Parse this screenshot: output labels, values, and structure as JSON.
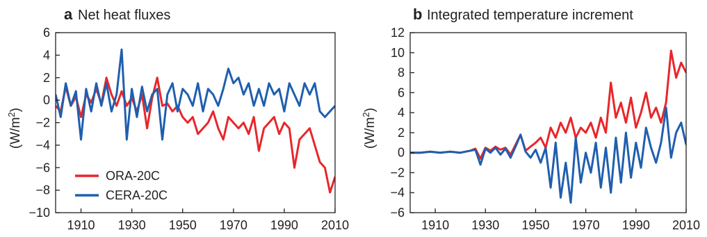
{
  "colors": {
    "ora": "#e8262a",
    "cera": "#1f5fae",
    "axis": "#231f20"
  },
  "chart_data": [
    {
      "type": "line",
      "panel": "a",
      "title": "Net heat fluxes",
      "xlabel": "",
      "ylabel": "(W/m",
      "ylabel_sup": "2",
      "ylabel_tail": ")",
      "xlim": [
        1900,
        2010
      ],
      "ylim": [
        -10,
        6
      ],
      "xticks": [
        1910,
        1930,
        1950,
        1970,
        1990,
        2010
      ],
      "yticks": [
        6,
        4,
        2,
        0,
        -2,
        -4,
        -6,
        -8,
        -10
      ],
      "legend": "lower-left",
      "grid": false,
      "series": [
        {
          "name": "ORA-20C",
          "color": "#e8262a",
          "x": [
            1900,
            1902,
            1904,
            1906,
            1908,
            1910,
            1912,
            1914,
            1916,
            1918,
            1920,
            1922,
            1924,
            1926,
            1928,
            1930,
            1932,
            1934,
            1936,
            1938,
            1940,
            1942,
            1944,
            1946,
            1948,
            1950,
            1952,
            1954,
            1956,
            1958,
            1960,
            1962,
            1964,
            1966,
            1968,
            1970,
            1972,
            1974,
            1976,
            1978,
            1980,
            1982,
            1984,
            1986,
            1988,
            1990,
            1992,
            1994,
            1996,
            1998,
            2000,
            2002,
            2004,
            2006,
            2008,
            2010
          ],
          "y": [
            -0.5,
            -1.0,
            1.2,
            -0.5,
            0.3,
            -1.5,
            0.5,
            -0.2,
            1.0,
            -0.3,
            2.0,
            0.5,
            -0.5,
            0.8,
            -0.5,
            0.2,
            -1.0,
            0.5,
            -2.5,
            0.2,
            2.0,
            -0.5,
            -0.3,
            -1.0,
            -0.5,
            -1.5,
            -2.0,
            -1.5,
            -3.0,
            -2.5,
            -2.0,
            -1.0,
            -2.5,
            -3.5,
            -1.5,
            -2.0,
            -2.5,
            -2.0,
            -3.0,
            -1.5,
            -4.5,
            -2.5,
            -2.0,
            -1.5,
            -3.0,
            -2.0,
            -2.5,
            -6.0,
            -3.5,
            -3.0,
            -2.5,
            -4.0,
            -5.5,
            -6.0,
            -8.2,
            -6.8
          ]
        },
        {
          "name": "CERA-20C",
          "color": "#1f5fae",
          "x": [
            1900,
            1902,
            1904,
            1906,
            1908,
            1910,
            1912,
            1914,
            1916,
            1918,
            1920,
            1922,
            1924,
            1926,
            1928,
            1930,
            1932,
            1934,
            1936,
            1938,
            1940,
            1942,
            1944,
            1946,
            1948,
            1950,
            1952,
            1954,
            1956,
            1958,
            1960,
            1962,
            1964,
            1966,
            1968,
            1970,
            1972,
            1974,
            1976,
            1978,
            1980,
            1982,
            1984,
            1986,
            1988,
            1990,
            1992,
            1994,
            1996,
            1998,
            2000,
            2002,
            2004,
            2006,
            2008,
            2010
          ],
          "y": [
            0.5,
            -1.5,
            1.5,
            -0.5,
            0.8,
            -3.5,
            1.0,
            -1.0,
            1.5,
            -0.5,
            1.5,
            -1.0,
            0.5,
            4.5,
            -3.5,
            1.0,
            -1.5,
            1.2,
            -1.0,
            0.5,
            1.0,
            -3.5,
            0.5,
            1.5,
            -1.0,
            1.0,
            0.5,
            -0.5,
            1.5,
            -1.0,
            1.0,
            0.5,
            -0.5,
            1.0,
            2.8,
            1.5,
            2.0,
            0.5,
            1.5,
            -0.5,
            1.0,
            -0.5,
            1.5,
            0.5,
            1.0,
            -1.0,
            1.5,
            0.5,
            -0.5,
            1.5,
            0.5,
            1.5,
            -1.0,
            -1.5,
            -1.0,
            -0.5
          ]
        }
      ]
    },
    {
      "type": "line",
      "panel": "b",
      "title": "Integrated temperature increment",
      "xlabel": "",
      "ylabel": "(W/m",
      "ylabel_sup": "2",
      "ylabel_tail": ")",
      "xlim": [
        1900,
        2010
      ],
      "ylim": [
        -6,
        12
      ],
      "xticks": [
        1910,
        1930,
        1950,
        1970,
        1990,
        2010
      ],
      "yticks": [
        12,
        10,
        8,
        6,
        4,
        2,
        0,
        -2,
        -4,
        -6
      ],
      "legend": "",
      "grid": false,
      "series": [
        {
          "name": "ORA-20C",
          "color": "#e8262a",
          "x": [
            1900,
            1904,
            1908,
            1912,
            1916,
            1920,
            1924,
            1926,
            1928,
            1930,
            1932,
            1934,
            1936,
            1938,
            1940,
            1942,
            1944,
            1946,
            1948,
            1950,
            1952,
            1954,
            1956,
            1958,
            1960,
            1962,
            1964,
            1966,
            1968,
            1970,
            1972,
            1974,
            1976,
            1978,
            1980,
            1982,
            1984,
            1986,
            1988,
            1990,
            1992,
            1994,
            1996,
            1998,
            2000,
            2002,
            2004,
            2006,
            2008,
            2010
          ],
          "y": [
            0,
            0,
            0.1,
            0,
            0.1,
            0,
            0.2,
            0.4,
            -0.6,
            0.5,
            0.2,
            0.6,
            0.3,
            0.5,
            -0.2,
            0.8,
            1.8,
            0.2,
            0.6,
            1.0,
            1.5,
            0.5,
            2.5,
            1.5,
            3.0,
            2.0,
            3.5,
            1.5,
            2.5,
            2.0,
            3.0,
            1.5,
            3.5,
            2.0,
            7.0,
            3.5,
            5.0,
            3.0,
            5.5,
            2.5,
            4.0,
            6.0,
            3.5,
            4.5,
            3.0,
            5.0,
            10.2,
            7.5,
            9.0,
            8.0
          ]
        },
        {
          "name": "CERA-20C",
          "color": "#1f5fae",
          "x": [
            1900,
            1904,
            1908,
            1912,
            1916,
            1920,
            1924,
            1926,
            1928,
            1930,
            1932,
            1934,
            1936,
            1938,
            1940,
            1942,
            1944,
            1946,
            1948,
            1950,
            1952,
            1954,
            1956,
            1958,
            1960,
            1962,
            1964,
            1966,
            1968,
            1970,
            1972,
            1974,
            1976,
            1978,
            1980,
            1982,
            1984,
            1986,
            1988,
            1990,
            1992,
            1994,
            1996,
            1998,
            2000,
            2002,
            2004,
            2006,
            2008,
            2010
          ],
          "y": [
            0,
            0,
            0.1,
            0,
            0.1,
            0,
            0.2,
            0.3,
            -1.2,
            0.4,
            0,
            0.5,
            -0.2,
            0.4,
            -0.5,
            0.6,
            1.8,
            0.1,
            -0.5,
            0.3,
            -1.0,
            0.5,
            -3.5,
            1.0,
            -4.5,
            -1.0,
            -5.0,
            1.5,
            -3.0,
            0,
            -2.0,
            1.0,
            -3.5,
            0.5,
            -4.0,
            1.5,
            -3.0,
            2.0,
            -2.5,
            1.0,
            -1.5,
            2.5,
            0.5,
            -1.0,
            1.0,
            4.5,
            -0.5,
            2.0,
            3.0,
            0.8
          ]
        }
      ]
    }
  ]
}
